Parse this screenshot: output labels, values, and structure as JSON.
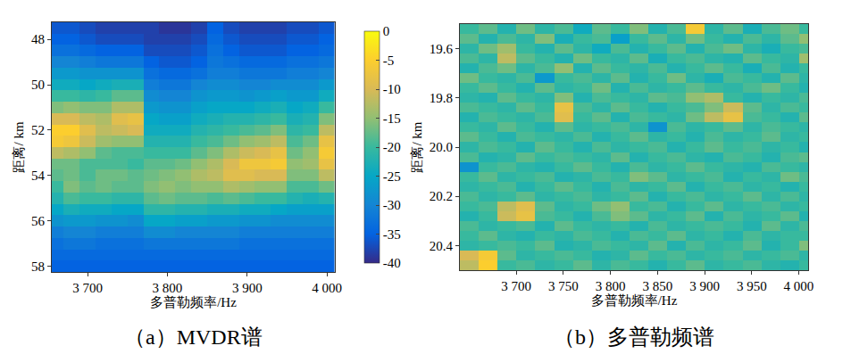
{
  "chart_data": [
    {
      "type": "heatmap",
      "title": "（a）MVDR谱",
      "x_label": "多普勒频率/Hz",
      "y_label": "距离/ km",
      "x": [
        3660,
        3680,
        3700,
        3720,
        3740,
        3760,
        3780,
        3800,
        3820,
        3840,
        3860,
        3880,
        3900,
        3920,
        3940,
        3960,
        3980,
        4000
      ],
      "y": [
        47.5,
        48,
        48.5,
        49,
        49.5,
        50,
        50.5,
        51,
        51.5,
        52,
        52.5,
        53,
        53.5,
        54,
        54.5,
        55,
        55.5,
        56,
        56.5,
        57,
        57.5,
        58
      ],
      "z_by_x": [
        [
          -36,
          -35,
          -33,
          -30,
          -27,
          -24,
          -20,
          -16,
          -10,
          -5,
          -6,
          -12,
          -17,
          -18,
          -20,
          -22,
          -25,
          -28,
          -31,
          -33,
          -34,
          -35
        ],
        [
          -36,
          -35,
          -33,
          -30,
          -27,
          -24,
          -20,
          -15,
          -10,
          -5,
          -7,
          -13,
          -17,
          -17,
          -16,
          -19,
          -23,
          -27,
          -30,
          -32,
          -34,
          -35
        ],
        [
          -37,
          -36,
          -34,
          -31,
          -28,
          -25,
          -21,
          -16,
          -12,
          -9,
          -11,
          -15,
          -19,
          -19,
          -18,
          -20,
          -24,
          -27,
          -30,
          -32,
          -34,
          -35
        ],
        [
          -38,
          -37,
          -35,
          -32,
          -28,
          -24,
          -20,
          -16,
          -13,
          -12,
          -14,
          -18,
          -19,
          -17,
          -17,
          -20,
          -24,
          -28,
          -31,
          -33,
          -34,
          -35
        ],
        [
          -38,
          -37,
          -35,
          -32,
          -28,
          -23,
          -18,
          -13,
          -9,
          -11,
          -15,
          -19,
          -19,
          -17,
          -18,
          -21,
          -25,
          -28,
          -31,
          -33,
          -34,
          -35
        ],
        [
          -38,
          -37,
          -35,
          -32,
          -28,
          -23,
          -18,
          -13,
          -8,
          -10,
          -15,
          -19,
          -20,
          -18,
          -18,
          -21,
          -25,
          -29,
          -31,
          -33,
          -34,
          -35
        ],
        [
          -38,
          -38,
          -37,
          -35,
          -33,
          -31,
          -29,
          -27,
          -25,
          -24,
          -22,
          -20,
          -18,
          -17,
          -16,
          -18,
          -21,
          -25,
          -29,
          -32,
          -34,
          -35
        ],
        [
          -39,
          -38,
          -37,
          -36,
          -34,
          -32,
          -30,
          -28,
          -26,
          -24,
          -22,
          -20,
          -18,
          -16,
          -15,
          -17,
          -21,
          -25,
          -29,
          -32,
          -34,
          -35
        ],
        [
          -39,
          -38,
          -37,
          -36,
          -34,
          -32,
          -30,
          -28,
          -26,
          -24,
          -22,
          -20,
          -17,
          -15,
          -16,
          -18,
          -22,
          -26,
          -30,
          -32,
          -34,
          -35
        ],
        [
          -38,
          -37,
          -36,
          -35,
          -33,
          -30,
          -28,
          -26,
          -24,
          -22,
          -20,
          -18,
          -15,
          -13,
          -15,
          -18,
          -22,
          -26,
          -30,
          -32,
          -34,
          -35
        ],
        [
          -35,
          -34,
          -33,
          -32,
          -31,
          -29,
          -27,
          -25,
          -23,
          -21,
          -19,
          -16,
          -13,
          -12,
          -15,
          -19,
          -23,
          -27,
          -30,
          -32,
          -34,
          -35
        ],
        [
          -37,
          -36,
          -35,
          -33,
          -31,
          -29,
          -27,
          -25,
          -22,
          -20,
          -17,
          -13,
          -10,
          -9,
          -13,
          -18,
          -23,
          -27,
          -30,
          -32,
          -34,
          -35
        ],
        [
          -38,
          -37,
          -36,
          -34,
          -32,
          -30,
          -28,
          -25,
          -22,
          -19,
          -15,
          -11,
          -7,
          -9,
          -14,
          -19,
          -24,
          -28,
          -31,
          -33,
          -34,
          -35
        ],
        [
          -38,
          -37,
          -36,
          -34,
          -32,
          -30,
          -27,
          -24,
          -21,
          -18,
          -14,
          -10,
          -7,
          -10,
          -15,
          -20,
          -24,
          -28,
          -31,
          -33,
          -34,
          -35
        ],
        [
          -38,
          -37,
          -36,
          -34,
          -32,
          -29,
          -26,
          -23,
          -20,
          -16,
          -12,
          -8,
          -6,
          -10,
          -15,
          -20,
          -25,
          -29,
          -31,
          -33,
          -34,
          -35
        ],
        [
          -37,
          -36,
          -35,
          -33,
          -31,
          -29,
          -27,
          -25,
          -23,
          -21,
          -19,
          -17,
          -15,
          -16,
          -19,
          -22,
          -26,
          -29,
          -31,
          -33,
          -34,
          -35
        ],
        [
          -37,
          -36,
          -35,
          -33,
          -31,
          -29,
          -27,
          -24,
          -22,
          -20,
          -17,
          -15,
          -14,
          -16,
          -19,
          -23,
          -26,
          -29,
          -31,
          -33,
          -34,
          -35
        ],
        [
          -36,
          -35,
          -34,
          -32,
          -30,
          -27,
          -24,
          -20,
          -16,
          -12,
          -8,
          -6,
          -8,
          -12,
          -17,
          -22,
          -26,
          -29,
          -31,
          -33,
          -34,
          -35
        ]
      ],
      "xlim": [
        3655,
        4010
      ],
      "xticks": [
        {
          "value": 3700,
          "label": "3 700"
        },
        {
          "value": 3800,
          "label": "3 800"
        },
        {
          "value": 3900,
          "label": "3 900"
        },
        {
          "value": 4000,
          "label": "4 000"
        }
      ],
      "ylim": [
        58.25,
        47.25
      ],
      "yticks": [
        48,
        50,
        52,
        54,
        56,
        58
      ],
      "zlim": [
        -40,
        0
      ],
      "colorbar_ticks": [
        0,
        -5,
        -10,
        -15,
        -20,
        -25,
        -30,
        -35,
        -40
      ]
    },
    {
      "type": "heatmap",
      "title": "（b）多普勒频谱",
      "x_label": "多普勒频率/Hz",
      "y_label": "距离/ km",
      "x": [
        3650,
        3670,
        3690,
        3710,
        3730,
        3750,
        3770,
        3790,
        3810,
        3830,
        3850,
        3870,
        3890,
        3910,
        3930,
        3950,
        3970,
        3990,
        4010
      ],
      "y": [
        19.52,
        19.56,
        19.6,
        19.64,
        19.68,
        19.72,
        19.76,
        19.8,
        19.84,
        19.88,
        19.92,
        19.96,
        20,
        20.04,
        20.08,
        20.12,
        20.16,
        20.2,
        20.24,
        20.28,
        20.32,
        20.36,
        20.4,
        20.44,
        20.48
      ],
      "z": [
        [
          -20,
          -18,
          -22,
          -17,
          -21,
          -19,
          -24,
          -18,
          -20,
          -16,
          -22,
          -19,
          -6,
          -21,
          -18,
          -23,
          -19,
          -17,
          -20
        ],
        [
          -18,
          -22,
          -19,
          -21,
          -16,
          -23,
          -20,
          -19,
          -26,
          -20,
          -18,
          -21,
          -17,
          -20,
          -22,
          -19,
          -21,
          -18,
          -15
        ],
        [
          -21,
          -17,
          -14,
          -20,
          -22,
          -18,
          -21,
          -24,
          -19,
          -22,
          -20,
          -18,
          -22,
          -19,
          -17,
          -21,
          -23,
          -20,
          -19
        ],
        [
          -19,
          -21,
          -12,
          -18,
          -20,
          -22,
          -17,
          -20,
          -21,
          -18,
          -23,
          -20,
          -19,
          -21,
          -22,
          -18,
          -20,
          -21,
          -14
        ],
        [
          -22,
          -19,
          -17,
          -21,
          -19,
          -15,
          -22,
          -18,
          -20,
          -21,
          -19,
          -22,
          -20,
          -18,
          -20,
          -23,
          -19,
          -22,
          -20
        ],
        [
          -17,
          -20,
          -21,
          -19,
          -27,
          -20,
          -19,
          -21,
          -18,
          -22,
          -20,
          -17,
          -21,
          -23,
          -19,
          -20,
          -22,
          -18,
          -21
        ],
        [
          -20,
          -18,
          -20,
          -22,
          -18,
          -21,
          -20,
          -17,
          -22,
          -19,
          -21,
          -20,
          -18,
          -20,
          -21,
          -19,
          -17,
          -20,
          -22
        ],
        [
          -21,
          -22,
          -18,
          -20,
          -21,
          -16,
          -22,
          -19,
          -20,
          -21,
          -18,
          -19,
          -15,
          -13,
          -20,
          -22,
          -20,
          -21,
          -19
        ],
        [
          -19,
          -20,
          -21,
          -18,
          -20,
          -8,
          -19,
          -21,
          -18,
          -20,
          -22,
          -20,
          -19,
          -16,
          -11,
          -18,
          -21,
          -19,
          -20
        ],
        [
          -22,
          -19,
          -20,
          -21,
          -19,
          -9,
          -20,
          -18,
          -22,
          -19,
          -20,
          -21,
          -17,
          -12,
          -8,
          -19,
          -20,
          -22,
          -18
        ],
        [
          -20,
          -21,
          -18,
          -20,
          -22,
          -18,
          -21,
          -20,
          -19,
          -21,
          -28,
          -19,
          -21,
          -20,
          -18,
          -21,
          -19,
          -20,
          -21
        ],
        [
          -18,
          -20,
          -22,
          -19,
          -20,
          -21,
          -19,
          -22,
          -20,
          -18,
          -21,
          -20,
          -22,
          -19,
          -21,
          -20,
          -18,
          -21,
          -20
        ],
        [
          -21,
          -19,
          -20,
          -22,
          -18,
          -20,
          -22,
          -19,
          -21,
          -20,
          -19,
          -22,
          -20,
          -18,
          -20,
          -19,
          -21,
          -20,
          -22
        ],
        [
          -19,
          -22,
          -21,
          -18,
          -20,
          -19,
          -20,
          -21,
          -18,
          -22,
          -20,
          -19,
          -21,
          -22,
          -19,
          -20,
          -22,
          -19,
          -18
        ],
        [
          -28,
          -20,
          -19,
          -21,
          -22,
          -20,
          -18,
          -20,
          -22,
          -19,
          -21,
          -20,
          -18,
          -20,
          -21,
          -22,
          -19,
          -20,
          -21
        ],
        [
          -20,
          -18,
          -21,
          -20,
          -19,
          -22,
          -21,
          -19,
          -20,
          -16,
          -18,
          -21,
          -20,
          -19,
          -22,
          -20,
          -21,
          -17,
          -19
        ],
        [
          -21,
          -20,
          -19,
          -22,
          -20,
          -18,
          -20,
          -22,
          -19,
          -21,
          -20,
          -18,
          -22,
          -20,
          -19,
          -21,
          -20,
          -22,
          -20
        ],
        [
          -19,
          -21,
          -20,
          -18,
          -21,
          -20,
          -19,
          -21,
          -20,
          -18,
          -22,
          -20,
          -19,
          -21,
          -20,
          -18,
          -21,
          -19,
          -21
        ],
        [
          -20,
          -19,
          -12,
          -9,
          -18,
          -21,
          -20,
          -17,
          -15,
          -20,
          -19,
          -22,
          -20,
          -18,
          -21,
          -20,
          -19,
          -21,
          -20
        ],
        [
          -22,
          -20,
          -11,
          -8,
          -19,
          -20,
          -22,
          -19,
          -16,
          -18,
          -21,
          -20,
          -18,
          -22,
          -19,
          -21,
          -20,
          -18,
          -22
        ],
        [
          -19,
          -21,
          -20,
          -19,
          -22,
          -18,
          -20,
          -21,
          -20,
          -22,
          -19,
          -21,
          -20,
          -19,
          -20,
          -22,
          -18,
          -21,
          -19
        ],
        [
          -20,
          -18,
          -21,
          -22,
          -20,
          -21,
          -19,
          -20,
          -22,
          -19,
          -20,
          -18,
          -21,
          -20,
          -22,
          -19,
          -21,
          -20,
          -20
        ],
        [
          -21,
          -20,
          -19,
          -20,
          -18,
          -22,
          -21,
          -19,
          -20,
          -21,
          -18,
          -22,
          -19,
          -21,
          -20,
          -18,
          -22,
          -20,
          -16
        ],
        [
          -10,
          -6,
          -18,
          -21,
          -20,
          -19,
          -20,
          -22,
          -21,
          -18,
          -20,
          -19,
          -21,
          -20,
          -19,
          -21,
          -20,
          -19,
          -21
        ],
        [
          -12,
          -5,
          -20,
          -19,
          -21,
          -20,
          -18,
          -21,
          -19,
          -20,
          -22,
          -20,
          -18,
          -21,
          -20,
          -19,
          -21,
          -22,
          -20
        ]
      ],
      "xlim": [
        3640,
        4010
      ],
      "xticks": [
        {
          "value": 3700,
          "label": "3 700"
        },
        {
          "value": 3750,
          "label": "3 750"
        },
        {
          "value": 3800,
          "label": "3 800"
        },
        {
          "value": 3850,
          "label": "3 850"
        },
        {
          "value": 3900,
          "label": "3 900"
        },
        {
          "value": 3950,
          "label": "3 950"
        },
        {
          "value": 4000,
          "label": "4 000"
        }
      ],
      "ylim": [
        20.5,
        19.5
      ],
      "yticks": [
        19.6,
        19.8,
        {
          "value": 20,
          "label": "20.0"
        },
        20.2,
        20.4
      ],
      "zlim": [
        -40,
        0
      ]
    }
  ]
}
